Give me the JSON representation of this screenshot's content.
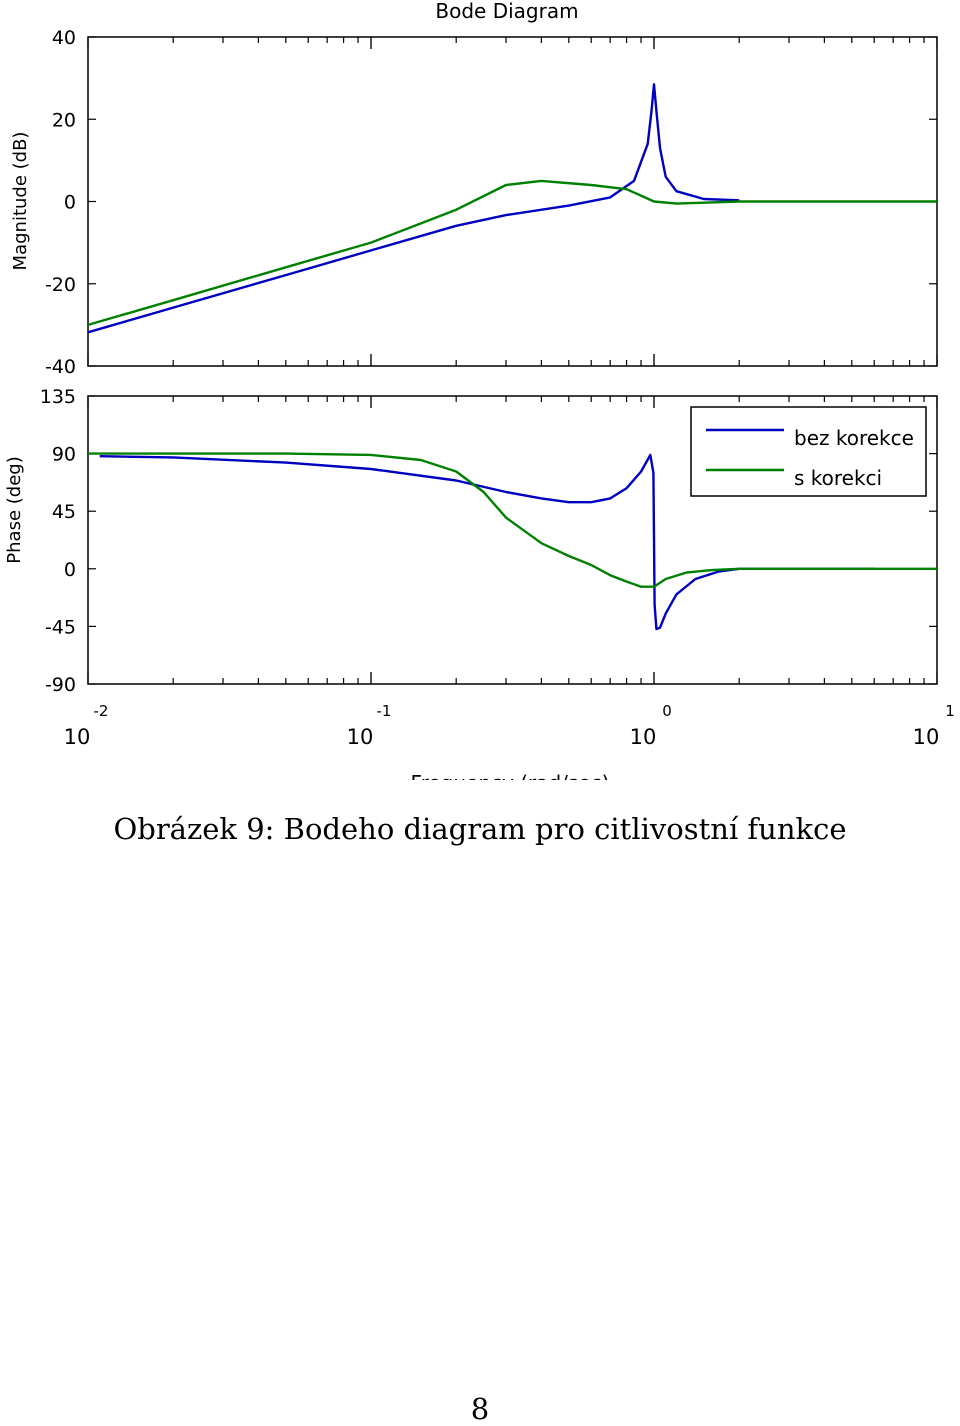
{
  "chart_data": {
    "type": "line",
    "title": "Bode Diagram",
    "xlabel": "Frequency (rad/sec)",
    "xscale": "log",
    "xlim": [
      0.01,
      10
    ],
    "xticks": [
      {
        "base": "10",
        "exp": "-2"
      },
      {
        "base": "10",
        "exp": "-1"
      },
      {
        "base": "10",
        "exp": "0"
      },
      {
        "base": "10",
        "exp": "1"
      }
    ],
    "magnitude": {
      "ylabel": "Magnitude (dB)",
      "ylim": [
        -40,
        40
      ],
      "yticks": [
        "40",
        "20",
        "0",
        "-20",
        "-40"
      ],
      "series": [
        {
          "color": "#0000c0",
          "x": [
            0.01,
            0.02,
            0.05,
            0.1,
            0.2,
            0.3,
            0.5,
            0.7,
            0.85,
            0.95,
            0.98,
            1.0,
            1.02,
            1.05,
            1.1,
            1.2,
            1.5,
            2.0
          ],
          "y": [
            -31.8,
            -25.8,
            -17.9,
            -11.9,
            -5.9,
            -3.3,
            -1.0,
            1.0,
            5.0,
            14.0,
            22.0,
            28.5,
            22.0,
            13.0,
            6.0,
            2.5,
            0.6,
            0.3
          ]
        },
        {
          "color": "#008000",
          "x": [
            0.01,
            0.02,
            0.05,
            0.1,
            0.2,
            0.3,
            0.4,
            0.6,
            0.8,
            1.0,
            1.2,
            1.5,
            2.0,
            5.0,
            10.0
          ],
          "y": [
            -30.0,
            -24.0,
            -16.0,
            -10.0,
            -2.0,
            4.0,
            5.0,
            4.0,
            3.0,
            0.0,
            -0.5,
            -0.3,
            0.0,
            0.0,
            0.0
          ]
        }
      ]
    },
    "phase": {
      "ylabel": "Phase (deg)",
      "ylim": [
        -90,
        135
      ],
      "yticks": [
        "135",
        "90",
        "45",
        "0",
        "-45",
        "-90"
      ],
      "legend": {
        "position": "top-right",
        "entries": [
          "bez korekce",
          "s korekci"
        ]
      },
      "series": [
        {
          "color": "#0000c0",
          "x": [
            0.011,
            0.02,
            0.05,
            0.1,
            0.2,
            0.3,
            0.4,
            0.5,
            0.6,
            0.7,
            0.8,
            0.9,
            0.97,
            0.995,
            1.005,
            1.02,
            1.05,
            1.1,
            1.2,
            1.4,
            1.7,
            2.0,
            3.0,
            6.0
          ],
          "y": [
            88,
            87,
            83,
            78,
            69,
            60,
            55,
            52,
            52,
            55,
            63,
            76,
            89,
            75,
            -28,
            -47,
            -46,
            -35,
            -20,
            -8,
            -2,
            0,
            0,
            0
          ]
        },
        {
          "color": "#008000",
          "x": [
            0.01,
            0.05,
            0.1,
            0.15,
            0.2,
            0.25,
            0.3,
            0.4,
            0.5,
            0.6,
            0.7,
            0.8,
            0.9,
            1.0,
            1.1,
            1.3,
            1.6,
            2.0,
            5.0,
            10.0
          ],
          "y": [
            90,
            90,
            89,
            85,
            76,
            60,
            40,
            20,
            10,
            3,
            -5,
            -10,
            -14,
            -14,
            -8,
            -3,
            -1,
            0,
            0,
            0
          ]
        }
      ]
    }
  },
  "caption": "Obrázek 9: Bodeho diagram pro citlivostní funkce",
  "page_number": "8"
}
